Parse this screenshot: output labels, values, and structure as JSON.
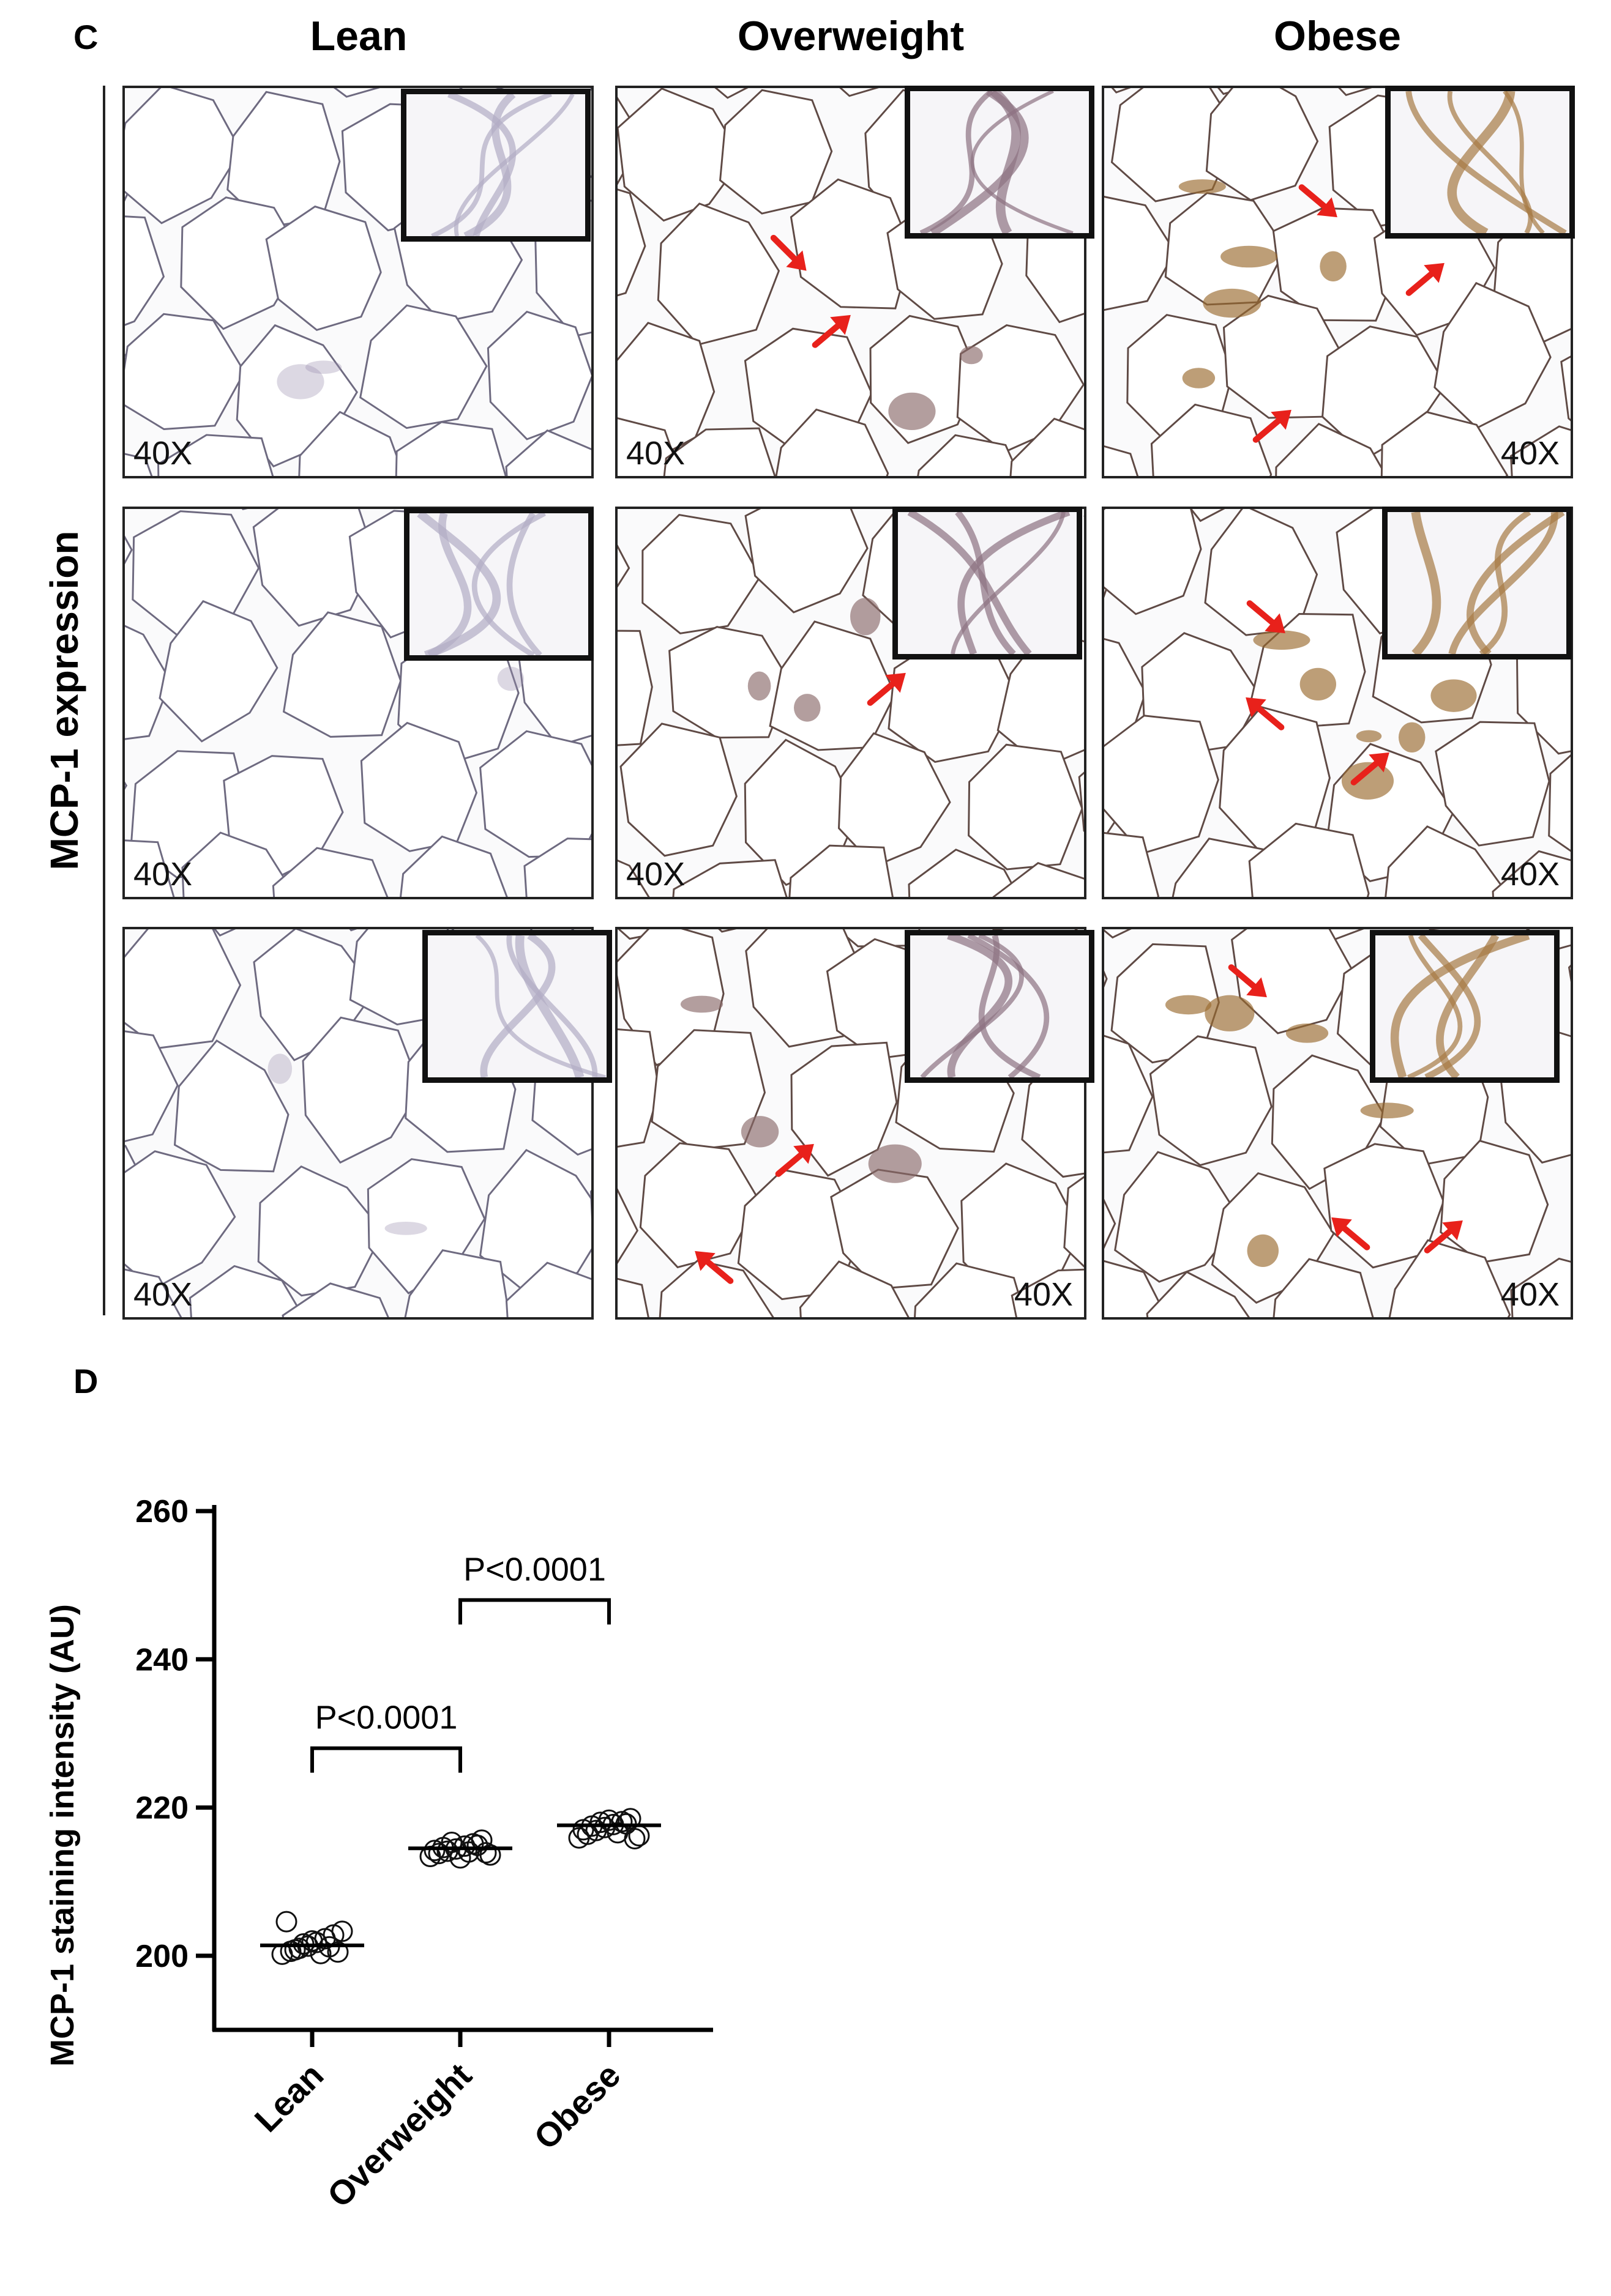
{
  "panel_c": {
    "letter": "C",
    "columns": [
      "Lean",
      "Overweight",
      "Obese"
    ],
    "row_label": "MCP-1 expression",
    "magnification": "40X",
    "colors": {
      "lean_stain": "#9a8fb0",
      "brown_stain": "#9a6a2e",
      "arrow": "#e8211b",
      "frame": "#111111"
    }
  },
  "panel_d": {
    "letter": "D"
  },
  "chart_data": {
    "type": "scatter",
    "ylabel": "MCP-1 staining intensity (AU)",
    "ylim": [
      190,
      260
    ],
    "yticks": [
      200,
      220,
      240,
      260
    ],
    "categories": [
      "Lean",
      "Overweight",
      "Obese"
    ],
    "series": [
      {
        "category": "Lean",
        "mean": 201.4,
        "values": [
          200.2,
          200.6,
          201.0,
          201.3,
          201.8,
          202.3,
          202.8,
          203.3,
          204.6,
          200.8,
          201.6,
          202.0,
          200.3,
          201.2,
          200.5
        ]
      },
      {
        "category": "Overweight",
        "mean": 214.5,
        "values": [
          213.4,
          213.8,
          214.1,
          214.4,
          214.8,
          215.1,
          215.6,
          213.6,
          214.2,
          214.6,
          215.3,
          213.2,
          214.0,
          214.9,
          213.9
        ]
      },
      {
        "category": "Obese",
        "mean": 217.6,
        "values": [
          215.9,
          216.4,
          216.9,
          217.3,
          217.7,
          218.1,
          218.5,
          216.2,
          217.0,
          217.5,
          218.0,
          218.3,
          216.6,
          217.8,
          215.8
        ]
      }
    ],
    "annotations": [
      {
        "text": "P<0.0001",
        "from": "Lean",
        "to": "Overweight",
        "y": 228
      },
      {
        "text": "P<0.0001",
        "from": "Overweight",
        "to": "Obese",
        "y": 248
      }
    ],
    "marker": "open-circle",
    "grid": false
  }
}
